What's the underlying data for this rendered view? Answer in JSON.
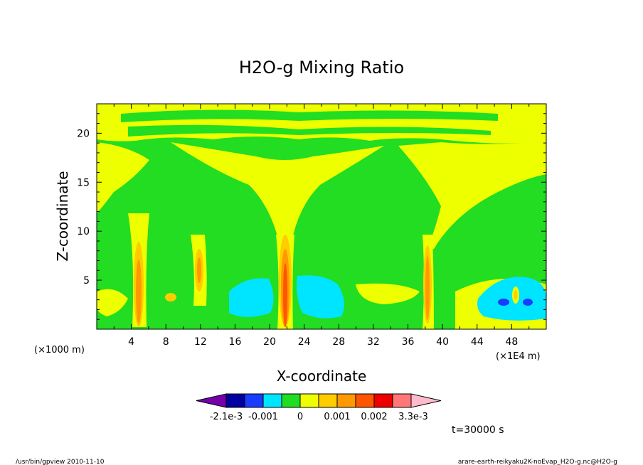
{
  "chart_data": {
    "type": "heatmap",
    "title": "H2O-g Mixing Ratio",
    "xlabel": "X-coordinate",
    "ylabel": "Z-coordinate",
    "x_unit": "(×1E4 m)",
    "y_unit": "(×1000 m)",
    "xlim": [
      0,
      52
    ],
    "ylim": [
      0,
      23
    ],
    "x_ticks": [
      "4",
      "8",
      "12",
      "16",
      "20",
      "24",
      "28",
      "32",
      "36",
      "40",
      "44",
      "48"
    ],
    "y_ticks": [
      "5",
      "10",
      "15",
      "20"
    ],
    "time_label": "t=30000 s",
    "colorbar": {
      "colors": [
        "#7700aa",
        "#0000a0",
        "#1a3cff",
        "#00e5ff",
        "#22dd22",
        "#eeff00",
        "#ffcc00",
        "#ff9900",
        "#ff5500",
        "#ee0000",
        "#ff7777",
        "#ffbbcc"
      ],
      "tick_labels": [
        "-2.1e-3",
        "-0.001",
        "0",
        "0.001",
        "0.002",
        "3.3e-3"
      ]
    },
    "features": {
      "upper_band_z": [
        17,
        23
      ],
      "moist_columns_x": [
        5,
        12,
        21.5,
        38
      ],
      "dry_pockets": [
        {
          "x": [
            15,
            20
          ],
          "z": [
            0.5,
            5
          ]
        },
        {
          "x": [
            23,
            28
          ],
          "z": [
            1,
            6
          ]
        },
        {
          "x": [
            44,
            51
          ],
          "z": [
            1,
            5
          ]
        }
      ]
    }
  },
  "footer": {
    "left": "/usr/bin/gpview   2010-11-10",
    "right": "arare-earth-reikyaku2K-noEvap_H2O-g.nc@H2O-g"
  }
}
